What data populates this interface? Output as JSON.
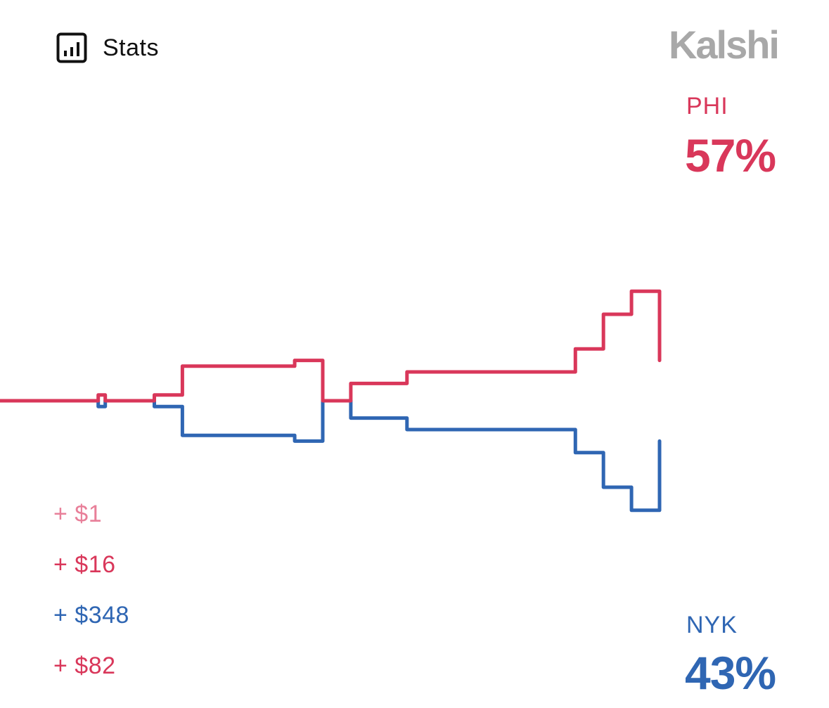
{
  "header": {
    "stats_label": "Stats",
    "stats_icon": "bar-chart-icon",
    "brand": "Kalshi"
  },
  "colors": {
    "phi": "#d9375a",
    "nyk": "#2f66b3",
    "brand": "#a8a8a8",
    "trade_faded": "#e87f99",
    "text": "#111111"
  },
  "teams": {
    "phi": {
      "label": "PHI",
      "pct": "57%"
    },
    "nyk": {
      "label": "NYK",
      "pct": "43%"
    }
  },
  "trades": [
    {
      "text": "+ $1",
      "team": "phi",
      "faded": true
    },
    {
      "text": "+ $16",
      "team": "phi",
      "faded": false
    },
    {
      "text": "+ $348",
      "team": "nyk",
      "faded": false
    },
    {
      "text": "+ $82",
      "team": "phi",
      "faded": false
    }
  ],
  "chart_data": {
    "type": "line",
    "step": true,
    "grid": false,
    "ylim": [
      0,
      100
    ],
    "x": [
      0,
      6,
      14,
      15,
      18,
      22,
      26,
      30,
      34,
      38,
      42,
      42.5,
      46,
      50,
      50.5,
      54,
      58,
      62,
      66,
      70,
      74,
      78,
      82,
      86,
      90,
      94
    ],
    "series": [
      {
        "name": "PHI",
        "values": [
          50,
          50,
          51,
          50,
          50,
          51,
          56,
          56,
          56,
          56,
          57,
          57,
          50,
          53,
          53,
          53,
          55,
          55,
          55,
          55,
          55,
          55,
          59,
          65,
          69,
          57
        ]
      },
      {
        "name": "NYK",
        "values": [
          50,
          50,
          49,
          50,
          50,
          49,
          44,
          44,
          44,
          44,
          43,
          43,
          50,
          47,
          47,
          47,
          45,
          45,
          45,
          45,
          45,
          45,
          41,
          35,
          31,
          43
        ]
      }
    ]
  }
}
